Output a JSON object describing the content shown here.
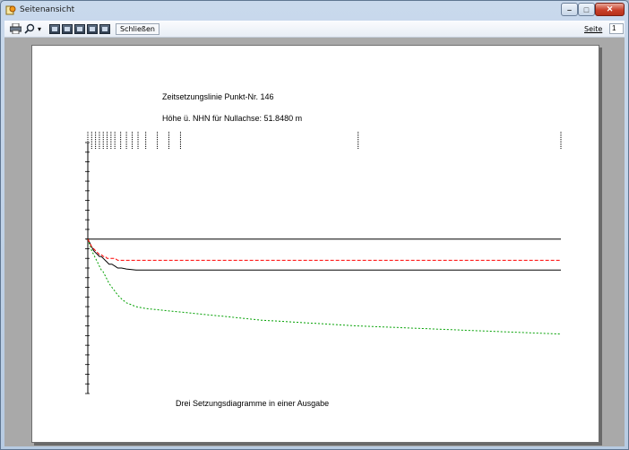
{
  "window": {
    "title": "Seitenansicht",
    "icon": "preview-app-icon"
  },
  "window_controls": {
    "minimize": "–",
    "maximize": "□",
    "close": "✕"
  },
  "toolbar": {
    "print_icon": "printer-icon",
    "zoom_icon": "magnifier-icon",
    "zoom_dropdown": "▾",
    "view_buttons": [
      "one-page-icon",
      "two-pages-icon",
      "three-pages-icon",
      "four-pages-icon",
      "six-pages-icon"
    ],
    "close_label": "Schließen",
    "page_label": "Seite",
    "page_value": "1"
  },
  "page": {
    "title": "Zeitsetzungslinie Punkt-Nr. 146",
    "subtitle": "Höhe ü. NHN für Nullachse: 51.8480 m",
    "caption": "Drei Setzungsdiagramme in einer Ausgabe"
  },
  "colors": {
    "series_black": "#000000",
    "series_red": "#ff0000",
    "series_green": "#00a000"
  },
  "chart_data": {
    "type": "line",
    "title": "Zeitsetzungslinie Punkt-Nr. 146",
    "subtitle": "Höhe ü. NHN für Nullachse: 51.8480 m",
    "x_tick_count": 18,
    "x": [
      0,
      2,
      4,
      6,
      8,
      10,
      12,
      14,
      16,
      18,
      20,
      22,
      25,
      28,
      31,
      35,
      40,
      50,
      60,
      70,
      80,
      90,
      100,
      110,
      120,
      130,
      140,
      150,
      160,
      170,
      180,
      190,
      200,
      210,
      220,
      230,
      240,
      250,
      260,
      270,
      280,
      290,
      300,
      310,
      320,
      330,
      340,
      350,
      360,
      370,
      380,
      390,
      400,
      410,
      420,
      430,
      440,
      450,
      460,
      470,
      480,
      490
    ],
    "ylim": [
      -80,
      50
    ],
    "grid": false,
    "series": [
      {
        "values": [
          0,
          -2,
          -4,
          -6,
          -7,
          -8,
          -9,
          -9,
          -10,
          -11,
          -12,
          -13,
          -13,
          -14,
          -15,
          -15,
          -15.5,
          -16,
          -16,
          -16,
          -16,
          -16,
          -16,
          -16,
          -16,
          -16,
          -16,
          -16,
          -16,
          -16,
          -16,
          -16,
          -16,
          -16,
          -16,
          -16,
          -16,
          -16,
          -16,
          -16,
          -16,
          -16,
          -16,
          -16,
          -16,
          -16,
          -16,
          -16,
          -16,
          -16,
          -16,
          -16,
          -16,
          -16,
          -16,
          -16,
          -16,
          -16,
          -16,
          -16,
          -16,
          -16
        ]
      },
      {
        "values": [
          0,
          -3,
          -6,
          -8,
          -10,
          -12,
          -14,
          -16,
          -17,
          -19,
          -21,
          -23,
          -25,
          -27,
          -29,
          -31,
          -33,
          -35,
          -36,
          -36.5,
          -37,
          -37.5,
          -38,
          -38.5,
          -39,
          -39.5,
          -40,
          -40.5,
          -41,
          -41.5,
          -42,
          -42.3,
          -42.6,
          -42.9,
          -43.2,
          -43.5,
          -43.8,
          -44.1,
          -44.4,
          -44.7,
          -45,
          -45.2,
          -45.4,
          -45.6,
          -45.8,
          -46,
          -46.2,
          -46.4,
          -46.6,
          -46.8,
          -47,
          -47.2,
          -47.4,
          -47.6,
          -47.8,
          -48,
          -48.2,
          -48.4,
          -48.6,
          -48.8,
          -49,
          -49.2
        ]
      },
      {
        "values": [
          0,
          -2,
          -4,
          -5,
          -6,
          -7,
          -8,
          -8,
          -9,
          -9,
          -10,
          -10,
          -10,
          -10,
          -11,
          -11,
          -11,
          -11,
          -11,
          -11,
          -11,
          -11,
          -11,
          -11,
          -11,
          -11,
          -11,
          -11,
          -11,
          -11,
          -11,
          -11,
          -11,
          -11,
          -11,
          -11,
          -11,
          -11,
          -11,
          -11,
          -11,
          -11,
          -11,
          -11,
          -11,
          -11,
          -11,
          -11,
          -11,
          -11,
          -11,
          -11,
          -11,
          -11,
          -11,
          -11,
          -11,
          -11,
          -11,
          -11,
          -11,
          -11
        ]
      }
    ]
  }
}
